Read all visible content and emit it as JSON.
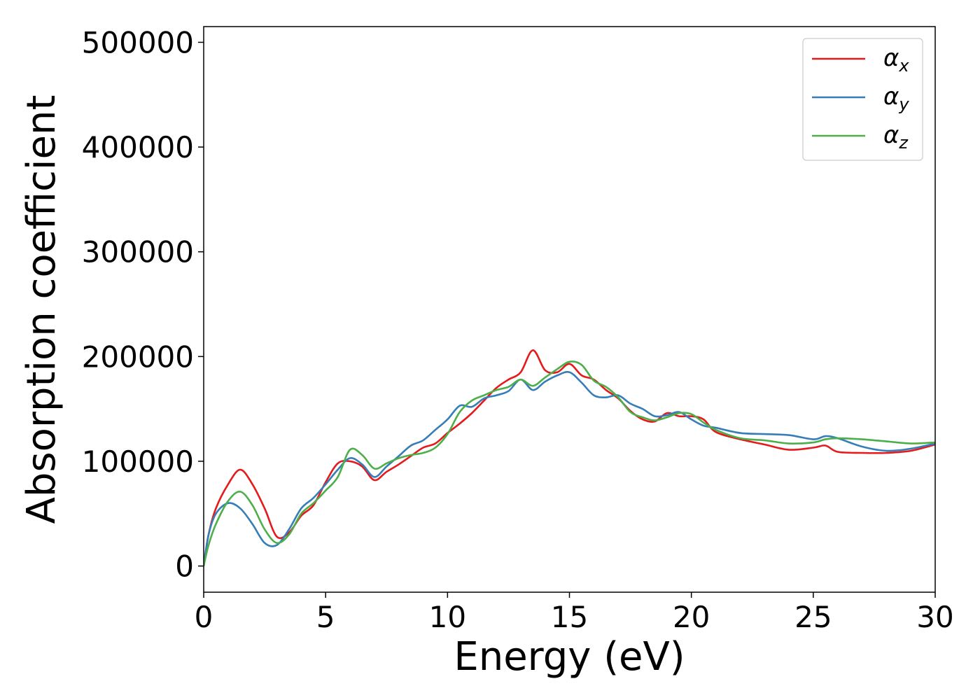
{
  "chart_data": {
    "type": "line",
    "title": "",
    "xlabel": "Energy (eV)",
    "ylabel": "Absorption coefficient",
    "xlim": [
      0,
      30
    ],
    "ylim": [
      -25000,
      515000
    ],
    "xticks": [
      0,
      5,
      10,
      15,
      20,
      25,
      30
    ],
    "xtick_labels": [
      "0",
      "5",
      "10",
      "15",
      "20",
      "25",
      "30"
    ],
    "yticks": [
      0,
      100000,
      200000,
      300000,
      400000,
      500000
    ],
    "ytick_labels": [
      "0",
      "100000",
      "200000",
      "300000",
      "400000",
      "500000"
    ],
    "grid": false,
    "legend_position": "top-right",
    "series": [
      {
        "name": "α",
        "subscript": "x",
        "color": "#e41a1c",
        "x": [
          0,
          0.2,
          0.5,
          1,
          1.5,
          2,
          2.5,
          3,
          3.5,
          4,
          4.5,
          5,
          5.5,
          6,
          6.5,
          7,
          7.5,
          8,
          8.5,
          9,
          9.5,
          10,
          10.5,
          11,
          11.5,
          12,
          12.5,
          13,
          13.5,
          14,
          14.5,
          15,
          15.5,
          16,
          16.5,
          17,
          17.5,
          18,
          18.5,
          19,
          19.5,
          20,
          20.5,
          21,
          22,
          23,
          24,
          25,
          25.5,
          26,
          27,
          28,
          29,
          30
        ],
        "y": [
          0,
          30000,
          55000,
          78000,
          92000,
          78000,
          55000,
          28000,
          32000,
          48000,
          58000,
          80000,
          98000,
          100000,
          95000,
          82000,
          90000,
          97000,
          105000,
          113000,
          117000,
          127000,
          136000,
          146000,
          158000,
          170000,
          178000,
          185000,
          206000,
          187000,
          185000,
          193000,
          182000,
          178000,
          168000,
          160000,
          148000,
          140000,
          138000,
          146000,
          143000,
          143000,
          140000,
          128000,
          121000,
          116000,
          111000,
          113000,
          115000,
          109000,
          108000,
          108000,
          110000,
          116000
        ]
      },
      {
        "name": "α",
        "subscript": "y",
        "color": "#377eb8",
        "x": [
          0,
          0.2,
          0.5,
          1,
          1.5,
          2,
          2.5,
          3,
          3.5,
          4,
          4.5,
          5,
          5.5,
          6,
          6.5,
          7,
          7.5,
          8,
          8.5,
          9,
          9.5,
          10,
          10.5,
          11,
          11.5,
          12,
          12.5,
          13,
          13.5,
          14,
          14.5,
          15,
          15.5,
          16,
          16.5,
          17,
          17.5,
          18,
          18.5,
          19,
          19.5,
          20,
          20.5,
          21,
          22,
          23,
          24,
          25,
          25.5,
          26,
          27,
          28,
          29,
          30
        ],
        "y": [
          0,
          30000,
          50000,
          60000,
          55000,
          40000,
          22000,
          20000,
          35000,
          55000,
          65000,
          78000,
          92000,
          103000,
          97000,
          85000,
          95000,
          105000,
          115000,
          120000,
          130000,
          140000,
          153000,
          152000,
          160000,
          163000,
          167000,
          178000,
          168000,
          176000,
          182000,
          185000,
          175000,
          163000,
          161000,
          163000,
          155000,
          150000,
          143000,
          144000,
          147000,
          140000,
          134000,
          132000,
          127000,
          126000,
          125000,
          121000,
          124000,
          122000,
          114000,
          110000,
          112000,
          117000
        ]
      },
      {
        "name": "α",
        "subscript": "z",
        "color": "#4daf4a",
        "x": [
          0,
          0.2,
          0.5,
          1,
          1.5,
          2,
          2.5,
          3,
          3.5,
          4,
          4.5,
          5,
          5.5,
          6,
          6.5,
          7,
          7.5,
          8,
          8.5,
          9,
          9.5,
          10,
          10.5,
          11,
          11.5,
          12,
          12.5,
          13,
          13.5,
          14,
          14.5,
          15,
          15.5,
          16,
          16.5,
          17,
          17.5,
          18,
          18.5,
          19,
          19.5,
          20,
          20.5,
          21,
          22,
          23,
          24,
          25,
          25.5,
          26,
          27,
          28,
          29,
          30
        ],
        "y": [
          0,
          20000,
          40000,
          62000,
          71000,
          58000,
          35000,
          22000,
          30000,
          50000,
          60000,
          72000,
          85000,
          111000,
          106000,
          93000,
          98000,
          103000,
          106000,
          108000,
          113000,
          126000,
          147000,
          158000,
          163000,
          168000,
          171000,
          178000,
          172000,
          180000,
          188000,
          195000,
          192000,
          177000,
          171000,
          161000,
          147000,
          142000,
          139000,
          142000,
          146000,
          145000,
          137000,
          130000,
          122000,
          120000,
          117000,
          118000,
          121000,
          122000,
          121000,
          119000,
          117000,
          118000
        ]
      }
    ]
  }
}
